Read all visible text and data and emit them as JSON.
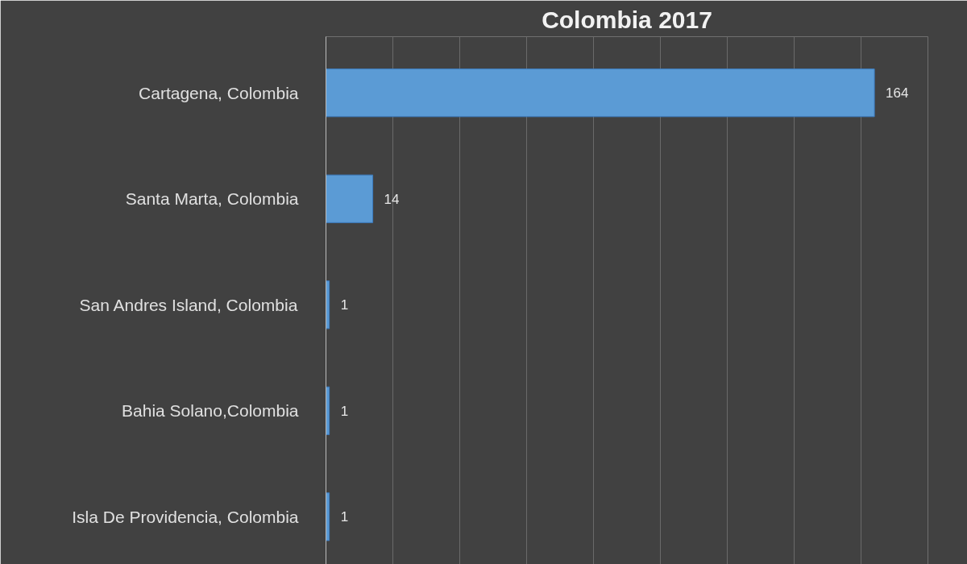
{
  "chart_data": {
    "type": "bar",
    "orientation": "horizontal",
    "title": "Colombia 2017",
    "categories": [
      "Cartagena, Colombia",
      "Santa Marta, Colombia",
      "San Andres Island, Colombia",
      "Bahia Solano,Colombia",
      "Isla De Providencia, Colombia"
    ],
    "values": [
      164,
      14,
      1,
      1,
      1
    ],
    "color": "#5b9bd5",
    "data_labels": true,
    "xlim": [
      0,
      180
    ],
    "xticks": [
      {
        "value": 0,
        "label": null
      },
      {
        "value": 20,
        "label": null
      },
      {
        "value": 40,
        "label": null
      },
      {
        "value": 60,
        "label": null
      },
      {
        "value": 80,
        "label": null
      },
      {
        "value": 100,
        "label": null
      },
      {
        "value": 120,
        "label": null
      },
      {
        "value": 140,
        "label": null
      },
      {
        "value": 160,
        "label": null
      },
      {
        "value": 180,
        "label": null
      }
    ],
    "grid": "x",
    "tick_labels": "y"
  }
}
